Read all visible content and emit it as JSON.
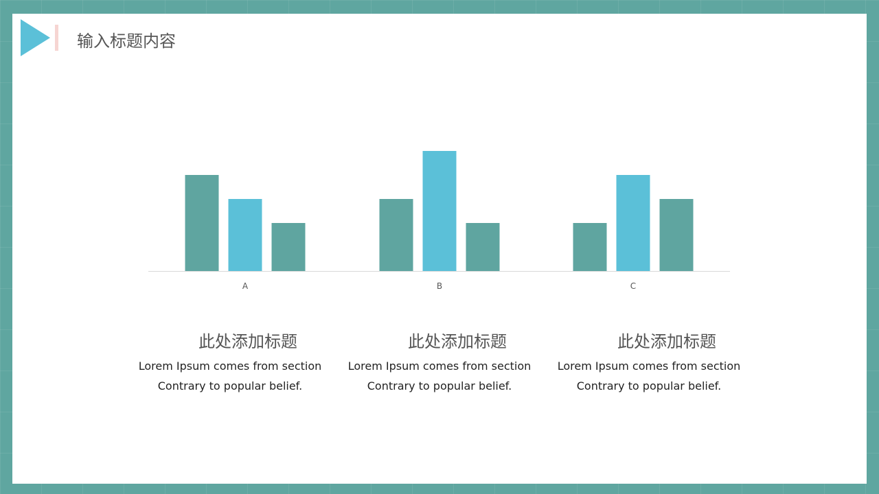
{
  "header": {
    "title": "输入标题内容"
  },
  "colors": {
    "background": "#5fa6a0",
    "teal": "#5fa5a0",
    "blue": "#5bc0d8"
  },
  "chart_data": {
    "type": "bar",
    "categories": [
      "A",
      "B",
      "C"
    ],
    "series": [
      {
        "values": [
          4,
          3,
          2
        ],
        "color": "#5fa5a0"
      },
      {
        "values": [
          3,
          5,
          4
        ],
        "color": "#5bc0d8"
      },
      {
        "values": [
          2,
          2,
          3
        ],
        "color": "#5fa5a0"
      }
    ],
    "grid": false,
    "legend": "none"
  },
  "blocks": [
    {
      "title": "此处添加标题",
      "line1": "Lorem Ipsum comes from section",
      "line2": "Contrary to popular belief."
    },
    {
      "title": "此处添加标题",
      "line1": "Lorem Ipsum comes from section",
      "line2": "Contrary to popular belief."
    },
    {
      "title": "此处添加标题",
      "line1": "Lorem Ipsum comes from section",
      "line2": "Contrary to popular belief."
    }
  ]
}
